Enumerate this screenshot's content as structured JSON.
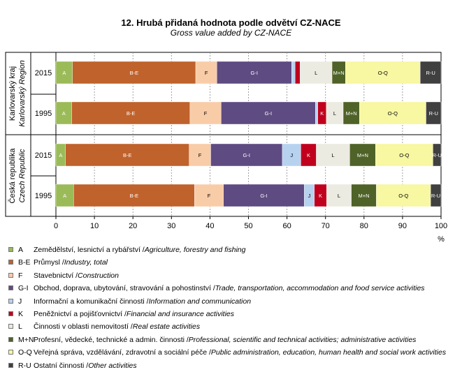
{
  "chart_data": {
    "type": "stacked-bar-horizontal",
    "title": "12. Hrubá přidaná hodnota podle odvětví CZ-NACE",
    "subtitle": "Gross value added by CZ-NACE",
    "xlabel": "%",
    "xlim": [
      0,
      100
    ],
    "xticks": [
      "0",
      "10",
      "20",
      "30",
      "40",
      "50",
      "60",
      "70",
      "80",
      "90",
      "100"
    ],
    "groups": [
      {
        "label_cz": "Karlovarský kraj",
        "label_en": "Karlovarský Region",
        "rows": [
          "2015",
          "1995"
        ]
      },
      {
        "label_cz": "Česká republika",
        "label_en": "Czech Republic",
        "rows": [
          "2015",
          "1995"
        ]
      }
    ],
    "segments": [
      "A",
      "B-E",
      "F",
      "G-I",
      "J",
      "K",
      "L",
      "M+N",
      "O-Q",
      "R-U"
    ],
    "segment_labels": [
      "A",
      "B-E",
      "F",
      "G-I",
      "J",
      "K",
      "L",
      "M+N",
      "O-Q",
      "R-U"
    ],
    "bars": [
      {
        "group": "Karlovarský kraj",
        "year": "2015",
        "values": [
          4.3,
          32.0,
          5.5,
          19.4,
          0.9,
          1.3,
          8.3,
          3.5,
          19.4,
          5.4
        ]
      },
      {
        "group": "Karlovarský kraj",
        "year": "1995",
        "values": [
          4.1,
          30.7,
          8.1,
          24.5,
          0.6,
          2.2,
          4.4,
          4.2,
          17.3,
          3.9
        ]
      },
      {
        "group": "Česká republika",
        "year": "2015",
        "values": [
          2.5,
          32.1,
          5.6,
          18.6,
          4.8,
          4.0,
          8.7,
          6.7,
          14.9,
          2.1
        ]
      },
      {
        "group": "Česká republika",
        "year": "1995",
        "values": [
          4.6,
          31.4,
          7.5,
          21.0,
          2.6,
          3.2,
          6.4,
          6.5,
          14.1,
          2.7
        ]
      }
    ]
  },
  "colors": {
    "A": "#9bbb59",
    "B-E": "#c0622c",
    "F": "#f9cca8",
    "G-I": "#5e4b82",
    "J": "#b7d2ef",
    "K": "#c0001d",
    "L": "#ecebe1",
    "M+N": "#4f6228",
    "O-Q": "#f8f7a2",
    "R-U": "#404040"
  },
  "legend": [
    {
      "code": "A",
      "cz": "Zemědělství, lesnictví a rybářství /",
      "en": "Agriculture, forestry and fishing"
    },
    {
      "code": "B-E",
      "cz": "Průmysl /",
      "en": "Industry, total"
    },
    {
      "code": "F",
      "cz": "Stavebnictví /",
      "en": "Construction"
    },
    {
      "code": "G-I",
      "cz": "Obchod, doprava, ubytování, stravování a pohostinství /",
      "en": "Trade, transportation, accommodation and food service activities"
    },
    {
      "code": "J",
      "cz": "Informační a komunikační činnosti /",
      "en": "Information and communication"
    },
    {
      "code": "K",
      "cz": "Peněžnictví a pojišťovnictví /",
      "en": "Financial and insurance activities"
    },
    {
      "code": "L",
      "cz": "Činnosti v oblasti nemovitostí /",
      "en": "Real estate activities"
    },
    {
      "code": "M+N",
      "cz": "Profesní, vědecké, technické a admin. činnosti /",
      "en": "Professional, scientific and technical activities; administrative activities"
    },
    {
      "code": "O-Q",
      "cz": "Veřejná správa, vzdělávání, zdravotní a sociální péče /",
      "en": "Public administration, education, human health and social work activities"
    },
    {
      "code": "R-U",
      "cz": "Ostatní činnosti /",
      "en": "Other activities"
    }
  ]
}
